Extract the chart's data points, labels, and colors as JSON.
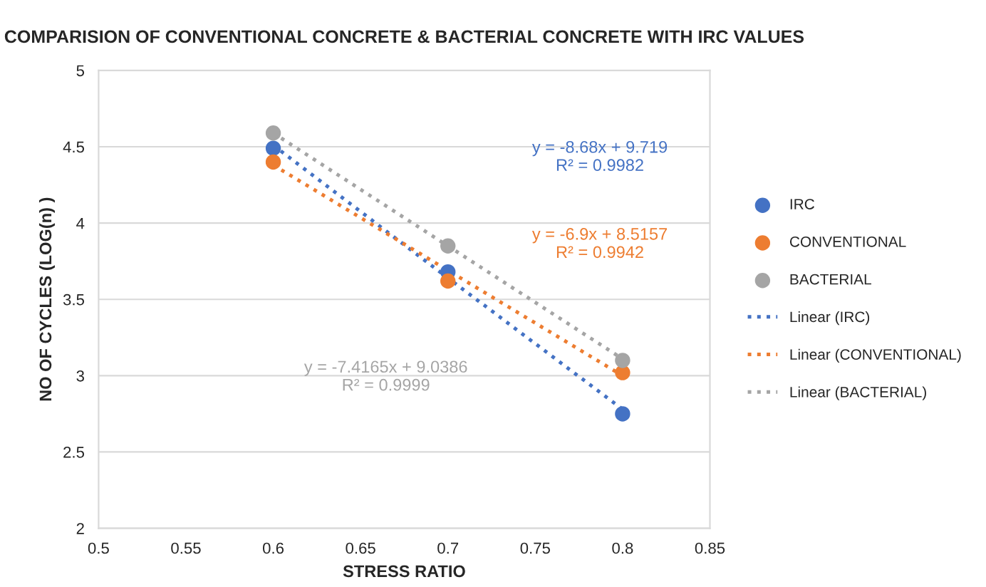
{
  "chart_data": {
    "type": "scatter",
    "title": "COMPARISION OF CONVENTIONAL CONCRETE & BACTERIAL CONCRETE WITH IRC VALUES",
    "xlabel": "STRESS RATIO",
    "ylabel": "NO OF CYCLES (LOG(n) )",
    "x": [
      0.6,
      0.7,
      0.8
    ],
    "series": [
      {
        "name": "IRC",
        "color": "#4472c4",
        "values": [
          4.49,
          3.68,
          2.75
        ],
        "marker": "circle"
      },
      {
        "name": "CONVENTIONAL",
        "color": "#ed7d31",
        "values": [
          4.4,
          3.62,
          3.02
        ],
        "marker": "circle"
      },
      {
        "name": "BACTERIAL",
        "color": "#a5a5a5",
        "values": [
          4.59,
          3.85,
          3.1
        ],
        "marker": "circle"
      },
      {
        "name": "Linear (IRC)",
        "type": "line",
        "color": "#4472c4",
        "values": [
          4.51,
          3.64,
          2.78
        ],
        "marker": "none",
        "line_style": "dotted"
      },
      {
        "name": "Linear (CONVENTIONAL)",
        "type": "line",
        "color": "#ed7d31",
        "values": [
          4.38,
          3.69,
          3.0
        ],
        "marker": "none",
        "line_style": "dotted"
      },
      {
        "name": "Linear (BACTERIAL)",
        "type": "line",
        "color": "#a5a5a5",
        "values": [
          4.59,
          3.85,
          3.11
        ],
        "marker": "none",
        "line_style": "dotted"
      }
    ],
    "annotations": [
      "y = -8.68x + 9.719\nR² = 0.9982",
      "y = -6.9x + 8.5157\nR² = 0.9942",
      "y = -7.4165x + 9.0386\nR² = 0.9999"
    ],
    "xlim": [
      0.5,
      0.85
    ],
    "xticks": [
      0.5,
      0.55,
      0.6,
      0.65,
      0.7,
      0.75,
      0.8,
      0.85
    ],
    "ylim": [
      2,
      5
    ],
    "yticks": [
      2,
      2.5,
      3,
      3.5,
      4,
      4.5,
      5
    ],
    "grid": "y",
    "legend": "right"
  }
}
